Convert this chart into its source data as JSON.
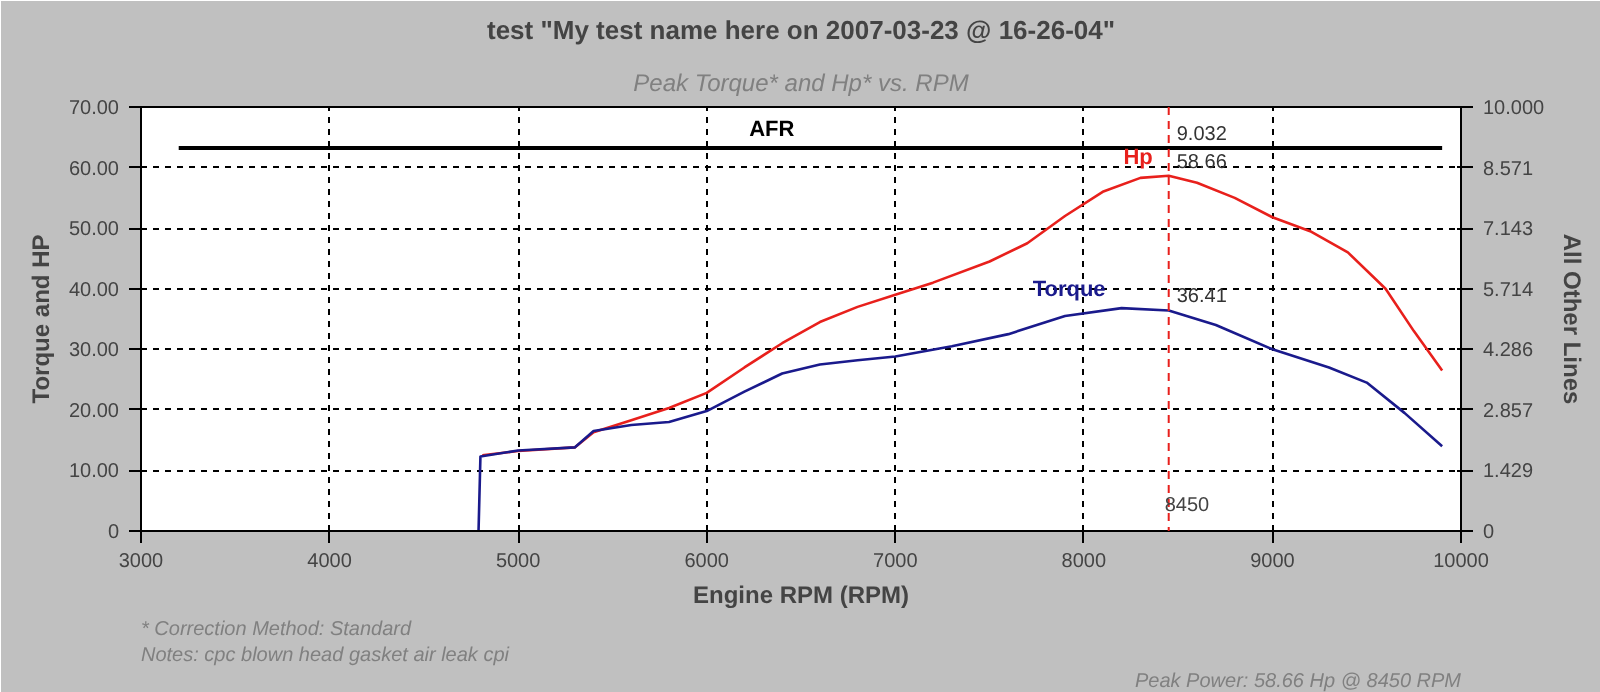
{
  "chart_data": {
    "type": "line",
    "title": "test \"My test name here on 2007-03-23 @ 16-26-04\"",
    "subtitle": "Peak Torque* and Hp* vs. RPM",
    "xlabel": "Engine RPM (RPM)",
    "ylabel": "Torque and HP",
    "y2label": "All Other Lines",
    "xlim": [
      3000,
      10000
    ],
    "xticks": [
      3000,
      4000,
      5000,
      6000,
      7000,
      8000,
      9000,
      10000
    ],
    "ylim": [
      0,
      70
    ],
    "yticks": [
      0,
      {
        "value": 10,
        "label": "10.00"
      },
      {
        "value": 20,
        "label": "20.00"
      },
      {
        "value": 30,
        "label": "30.00"
      },
      {
        "value": 40,
        "label": "40.00"
      },
      {
        "value": 50,
        "label": "50.00"
      },
      {
        "value": 60,
        "label": "60.00"
      },
      {
        "value": 70,
        "label": "70.00"
      }
    ],
    "y2lim": [
      0,
      10
    ],
    "y2ticks": [
      0,
      1.429,
      2.857,
      4.286,
      5.714,
      7.143,
      8.571,
      {
        "value": 10,
        "label": "10.000"
      }
    ],
    "grid": true,
    "legend": false,
    "line_style": "solid",
    "series": [
      {
        "name": "Hp",
        "color": "#e8201c",
        "x": [
          4810,
          5000,
          5300,
          5400,
          5600,
          5800,
          6000,
          6200,
          6400,
          6600,
          6800,
          7000,
          7200,
          7500,
          7700,
          7900,
          8100,
          8300,
          8450,
          8600,
          8800,
          9000,
          9200,
          9400,
          9600,
          9750,
          9900
        ],
        "values": [
          12.5,
          13.2,
          13.8,
          16.3,
          18.3,
          20.3,
          22.8,
          27,
          31,
          34.5,
          37,
          39,
          41,
          44.5,
          47.5,
          52,
          56,
          58.3,
          58.66,
          57.5,
          55,
          51.8,
          49.5,
          46,
          40,
          33,
          26.5
        ],
        "value_labels": [
          null,
          null,
          null,
          null,
          null,
          null,
          null,
          null,
          null,
          null,
          null,
          null,
          null,
          null,
          null,
          null,
          null,
          null,
          "58.66",
          null,
          null,
          null,
          null,
          null,
          null,
          null,
          null
        ]
      },
      {
        "name": "Torque",
        "color": "#1a1a8c",
        "x": [
          4790,
          4800,
          5000,
          5300,
          5400,
          5600,
          5800,
          6000,
          6200,
          6400,
          6600,
          6800,
          7000,
          7300,
          7600,
          7900,
          8200,
          8450,
          8700,
          9000,
          9300,
          9500,
          9700,
          9900
        ],
        "values": [
          0,
          12.3,
          13.3,
          13.8,
          16.5,
          17.5,
          18,
          19.8,
          23,
          26,
          27.5,
          28.2,
          28.8,
          30.5,
          32.5,
          35.5,
          36.8,
          36.41,
          34,
          30,
          27,
          24.5,
          19.5,
          14
        ],
        "value_labels": [
          null,
          null,
          null,
          null,
          null,
          null,
          null,
          null,
          null,
          null,
          null,
          null,
          null,
          null,
          null,
          null,
          null,
          "36.41",
          null,
          null,
          null,
          null,
          null,
          null
        ]
      },
      {
        "name": "AFR",
        "color": "#000000",
        "axis": "y2",
        "x": [
          3200,
          8450,
          9900
        ],
        "values": [
          9.032,
          9.032,
          9.032
        ],
        "value_labels": [
          null,
          "9.032",
          null
        ]
      }
    ],
    "ref_lines": [
      {
        "axis": "x",
        "value": 8450,
        "label": "8450",
        "color": "#e8201c",
        "line_style": "dashed"
      }
    ],
    "annotations": [
      "* Correction Method: Standard",
      "Notes: cpc blown head gasket air leak cpi",
      "Peak Power: 58.66 Hp @ 8450 RPM"
    ]
  }
}
